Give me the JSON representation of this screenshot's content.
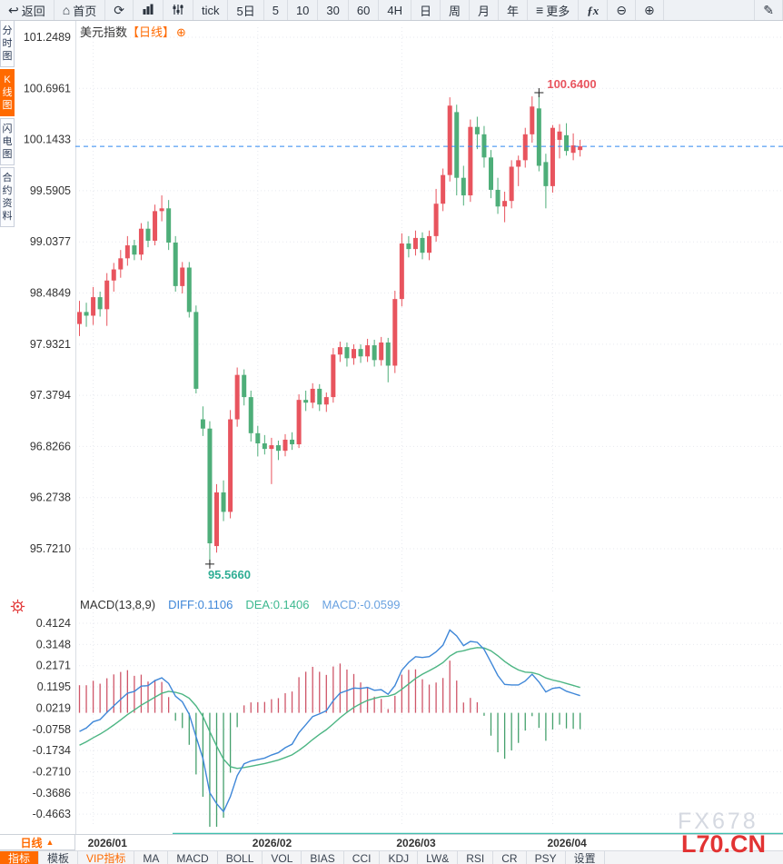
{
  "toolbar": {
    "items": [
      {
        "name": "back",
        "icon": "back",
        "label": "返回"
      },
      {
        "name": "home",
        "icon": "home",
        "label": "首页"
      },
      {
        "name": "refresh",
        "icon": "refresh",
        "label": ""
      },
      {
        "name": "chart-type",
        "icon": "bars",
        "label": ""
      },
      {
        "name": "indicator-panel",
        "icon": "sliders",
        "label": ""
      },
      {
        "name": "period-tick",
        "icon": "",
        "label": "tick"
      },
      {
        "name": "period-5d",
        "icon": "",
        "label": "5日"
      },
      {
        "name": "period-5",
        "icon": "",
        "label": "5"
      },
      {
        "name": "period-10",
        "icon": "",
        "label": "10"
      },
      {
        "name": "period-30",
        "icon": "",
        "label": "30"
      },
      {
        "name": "period-60",
        "icon": "",
        "label": "60"
      },
      {
        "name": "period-4h",
        "icon": "",
        "label": "4H"
      },
      {
        "name": "period-day",
        "icon": "",
        "label": "日"
      },
      {
        "name": "period-week",
        "icon": "",
        "label": "周"
      },
      {
        "name": "period-month",
        "icon": "",
        "label": "月"
      },
      {
        "name": "period-year",
        "icon": "",
        "label": "年"
      },
      {
        "name": "more",
        "icon": "menu",
        "label": "更多"
      },
      {
        "name": "formula",
        "icon": "fx",
        "label": ""
      },
      {
        "name": "zoom-out",
        "icon": "zoom-out",
        "label": ""
      },
      {
        "name": "zoom-in",
        "icon": "zoom-in",
        "label": ""
      },
      {
        "name": "draw",
        "icon": "pen",
        "label": "",
        "right": true
      }
    ]
  },
  "sidebar": {
    "tabs": [
      {
        "name": "time-chart",
        "label": "分时图",
        "selected": false
      },
      {
        "name": "kline-chart",
        "label": "K线图",
        "selected": true
      },
      {
        "name": "lightning-chart",
        "label": "闪电图",
        "selected": false
      },
      {
        "name": "contract-info",
        "label": "合约资料",
        "selected": false
      }
    ]
  },
  "chart": {
    "title": "美元指数",
    "interval_tag": "【日线】",
    "plus_icon": "⊕"
  },
  "macd_header": {
    "params": "MACD(13,8,9)",
    "diff": "DIFF:0.1106",
    "dea": "DEA:0.1406",
    "macd": "MACD:-0.0599"
  },
  "bottom": {
    "interval_label": "日线",
    "interval_arrow": "▲",
    "tabs": [
      {
        "label": "指标",
        "state": "selected"
      },
      {
        "label": "模板",
        "state": ""
      },
      {
        "label": "VIP指标",
        "state": "vip"
      },
      {
        "label": "MA",
        "state": ""
      },
      {
        "label": "MACD",
        "state": ""
      },
      {
        "label": "BOLL",
        "state": ""
      },
      {
        "label": "VOL",
        "state": ""
      },
      {
        "label": "BIAS",
        "state": ""
      },
      {
        "label": "CCI",
        "state": ""
      },
      {
        "label": "KDJ",
        "state": ""
      },
      {
        "label": "LW&",
        "state": ""
      },
      {
        "label": "RSI",
        "state": ""
      },
      {
        "label": "CR",
        "state": ""
      },
      {
        "label": "PSY",
        "state": ""
      },
      {
        "label": "设置",
        "state": ""
      }
    ]
  },
  "watermarks": {
    "brand": "FX678",
    "site": "L70.CN"
  },
  "colors": {
    "up": "#e8545e",
    "down": "#4eae79",
    "hist_up": "#cf5568",
    "hist_down": "#44a06c",
    "diff_line": "#3f87d8",
    "dea_line": "#4cb583",
    "macd_text": "#6aa2e0",
    "dea_text": "#3cb88f",
    "accent": "#ff6a00",
    "last_price_line": "#2e86f0",
    "high_label": "#e8545e",
    "low_label": "#2fae94",
    "grid": "#e7e9ef",
    "axis_text": "#333333",
    "teal_rule": "#3fbfae"
  },
  "chart_data": {
    "type": "candlestick",
    "title": "美元指数【日线】",
    "interval": "日线",
    "price_ticks": [
      "101.2489",
      "100.6961",
      "100.1433",
      "99.5905",
      "99.0377",
      "98.4849",
      "97.9321",
      "97.3794",
      "96.8266",
      "96.2738",
      "95.7210"
    ],
    "x_ticks": [
      {
        "label": "2026/01",
        "index": 2
      },
      {
        "label": "2026/02",
        "index": 26
      },
      {
        "label": "2026/03",
        "index": 47
      },
      {
        "label": "2026/04",
        "index": 69
      }
    ],
    "high_marker": {
      "label": "100.6400",
      "index": 67,
      "value": 100.64
    },
    "low_marker": {
      "label": "95.5660",
      "index": 19,
      "value": 95.566
    },
    "last_price": 100.07,
    "ohlc": [
      [
        98.15,
        98.4,
        98.02,
        98.28
      ],
      [
        98.28,
        98.38,
        98.12,
        98.24
      ],
      [
        98.24,
        98.55,
        98.14,
        98.44
      ],
      [
        98.44,
        98.5,
        98.23,
        98.31
      ],
      [
        98.31,
        98.7,
        98.13,
        98.62
      ],
      [
        98.62,
        98.81,
        98.5,
        98.74
      ],
      [
        98.74,
        98.95,
        98.65,
        98.86
      ],
      [
        98.86,
        99.1,
        98.78,
        99.0
      ],
      [
        99.0,
        99.06,
        98.84,
        98.9
      ],
      [
        98.9,
        99.24,
        98.84,
        99.18
      ],
      [
        99.18,
        99.26,
        98.98,
        99.05
      ],
      [
        99.05,
        99.44,
        99.0,
        99.37
      ],
      [
        99.37,
        99.54,
        99.26,
        99.4
      ],
      [
        99.4,
        99.49,
        98.95,
        99.03
      ],
      [
        99.03,
        99.1,
        98.5,
        98.56
      ],
      [
        98.56,
        98.82,
        98.48,
        98.76
      ],
      [
        98.76,
        98.82,
        98.22,
        98.28
      ],
      [
        98.28,
        98.35,
        97.4,
        97.45
      ],
      [
        97.12,
        97.26,
        96.94,
        97.02
      ],
      [
        97.02,
        97.1,
        95.566,
        95.78
      ],
      [
        95.75,
        96.42,
        95.68,
        96.33
      ],
      [
        96.33,
        96.46,
        96.02,
        96.12
      ],
      [
        96.12,
        97.22,
        96.05,
        97.12
      ],
      [
        97.12,
        97.68,
        97.04,
        97.6
      ],
      [
        97.6,
        97.66,
        97.27,
        97.36
      ],
      [
        97.36,
        97.43,
        96.88,
        96.97
      ],
      [
        96.97,
        97.05,
        96.72,
        96.86
      ],
      [
        96.86,
        96.95,
        96.74,
        96.8
      ],
      [
        96.8,
        96.92,
        96.42,
        96.84
      ],
      [
        96.84,
        96.89,
        96.68,
        96.78
      ],
      [
        96.78,
        96.96,
        96.72,
        96.9
      ],
      [
        96.9,
        96.98,
        96.79,
        96.85
      ],
      [
        96.85,
        97.39,
        96.81,
        97.33
      ],
      [
        97.33,
        97.43,
        97.21,
        97.3
      ],
      [
        97.3,
        97.51,
        97.24,
        97.45
      ],
      [
        97.45,
        97.5,
        97.21,
        97.28
      ],
      [
        97.28,
        97.41,
        97.2,
        97.36
      ],
      [
        97.36,
        97.89,
        97.3,
        97.82
      ],
      [
        97.82,
        97.96,
        97.74,
        97.9
      ],
      [
        97.9,
        97.95,
        97.69,
        97.78
      ],
      [
        97.78,
        97.93,
        97.71,
        97.88
      ],
      [
        97.88,
        97.93,
        97.73,
        97.8
      ],
      [
        97.8,
        97.99,
        97.74,
        97.92
      ],
      [
        97.92,
        97.98,
        97.69,
        97.76
      ],
      [
        97.76,
        98.01,
        97.7,
        97.95
      ],
      [
        97.95,
        98.0,
        97.52,
        97.7
      ],
      [
        97.7,
        98.51,
        97.62,
        98.42
      ],
      [
        98.42,
        99.13,
        98.34,
        99.02
      ],
      [
        99.02,
        99.1,
        98.87,
        98.96
      ],
      [
        98.96,
        99.16,
        98.89,
        99.08
      ],
      [
        99.08,
        99.14,
        98.85,
        98.92
      ],
      [
        98.92,
        99.16,
        98.84,
        99.1
      ],
      [
        99.1,
        99.61,
        99.04,
        99.45
      ],
      [
        99.45,
        99.83,
        99.37,
        99.76
      ],
      [
        99.76,
        100.6,
        99.69,
        100.51
      ],
      [
        100.44,
        100.52,
        99.54,
        99.73
      ],
      [
        99.73,
        99.86,
        99.43,
        99.54
      ],
      [
        99.54,
        100.36,
        99.47,
        100.28
      ],
      [
        100.28,
        100.39,
        100.04,
        100.2
      ],
      [
        100.2,
        100.29,
        99.84,
        99.95
      ],
      [
        99.95,
        100.03,
        99.51,
        99.6
      ],
      [
        99.6,
        99.73,
        99.34,
        99.42
      ],
      [
        99.42,
        99.58,
        99.25,
        99.48
      ],
      [
        99.48,
        99.92,
        99.4,
        99.85
      ],
      [
        99.85,
        99.97,
        99.64,
        99.92
      ],
      [
        99.92,
        100.27,
        99.84,
        100.2
      ],
      [
        100.2,
        100.61,
        100.11,
        100.5
      ],
      [
        100.48,
        100.64,
        99.8,
        99.86
      ],
      [
        99.9,
        99.99,
        99.4,
        99.64
      ],
      [
        99.64,
        100.3,
        99.57,
        100.27
      ],
      [
        100.14,
        100.31,
        99.94,
        100.23
      ],
      [
        100.19,
        100.32,
        99.97,
        100.02
      ],
      [
        100.0,
        100.21,
        99.92,
        100.08
      ],
      [
        100.03,
        100.14,
        99.96,
        100.07
      ]
    ],
    "macd": {
      "params": "MACD(13,8,9)",
      "short": 8,
      "long": 13,
      "signal": 9,
      "diff_value": 0.1106,
      "dea_value": 0.1406,
      "macd_value": -0.0599,
      "ticks": [
        "0.4124",
        "0.3148",
        "0.2171",
        "0.1195",
        "0.0219",
        "-0.0758",
        "-0.1734",
        "-0.2710",
        "-0.3686",
        "-0.4663"
      ]
    }
  }
}
